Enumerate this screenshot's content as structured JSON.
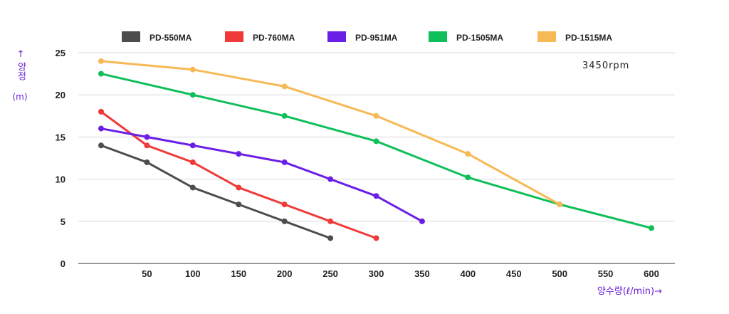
{
  "chart_data": {
    "type": "line",
    "annotation": "3450rpm",
    "ylabel": {
      "arrow": "↑",
      "text": "양정",
      "unit": "(m)"
    },
    "xlabel": "양수량(ℓ/min)→",
    "xlim": [
      0,
      600
    ],
    "ylim": [
      0,
      25
    ],
    "x_ticks": [
      {
        "value": 50,
        "label": "50"
      },
      {
        "value": 100,
        "label": "100"
      },
      {
        "value": 150,
        "label": "150"
      },
      {
        "value": 200,
        "label": "200"
      },
      {
        "value": 250,
        "label": "250"
      },
      {
        "value": 300,
        "label": "300"
      },
      {
        "value": 350,
        "label": "350"
      },
      {
        "value": 400,
        "label": "400"
      },
      {
        "value": 450,
        "label": "450"
      },
      {
        "value": 500,
        "label": "500"
      },
      {
        "value": 550,
        "label": "550"
      },
      {
        "value": 600,
        "label": "600"
      }
    ],
    "y_ticks": [
      {
        "value": 0,
        "label": "0"
      },
      {
        "value": 5,
        "label": "5"
      },
      {
        "value": 10,
        "label": "10"
      },
      {
        "value": 15,
        "label": "15"
      },
      {
        "value": 20,
        "label": "20"
      },
      {
        "value": 25,
        "label": "25"
      }
    ],
    "grid": "horizontal",
    "legend_position": "top",
    "series": [
      {
        "name": "PD-550MA",
        "color": "#4d4d4d",
        "x": [
          0,
          50,
          100,
          150,
          200,
          250
        ],
        "y": [
          14,
          12,
          9,
          7,
          5,
          3
        ]
      },
      {
        "name": "PD-760MA",
        "color": "#f03a3a",
        "x": [
          0,
          50,
          100,
          150,
          200,
          250,
          300
        ],
        "y": [
          18,
          14,
          12,
          9,
          7,
          5,
          3
        ]
      },
      {
        "name": "PD-951MA",
        "color": "#6a1fe6",
        "x": [
          0,
          50,
          100,
          150,
          200,
          250,
          300,
          350
        ],
        "y": [
          16,
          15,
          14,
          13,
          12,
          10,
          8,
          5
        ]
      },
      {
        "name": "PD-1505MA",
        "color": "#0fbf5a",
        "x": [
          0,
          100,
          200,
          300,
          400,
          500,
          600
        ],
        "y": [
          22.5,
          20,
          17.5,
          14.5,
          10.2,
          7,
          4.2
        ]
      },
      {
        "name": "PD-1515MA",
        "color": "#f7b955",
        "x": [
          0,
          100,
          200,
          300,
          400,
          500
        ],
        "y": [
          24,
          23,
          21,
          17.5,
          13,
          7
        ]
      }
    ]
  }
}
